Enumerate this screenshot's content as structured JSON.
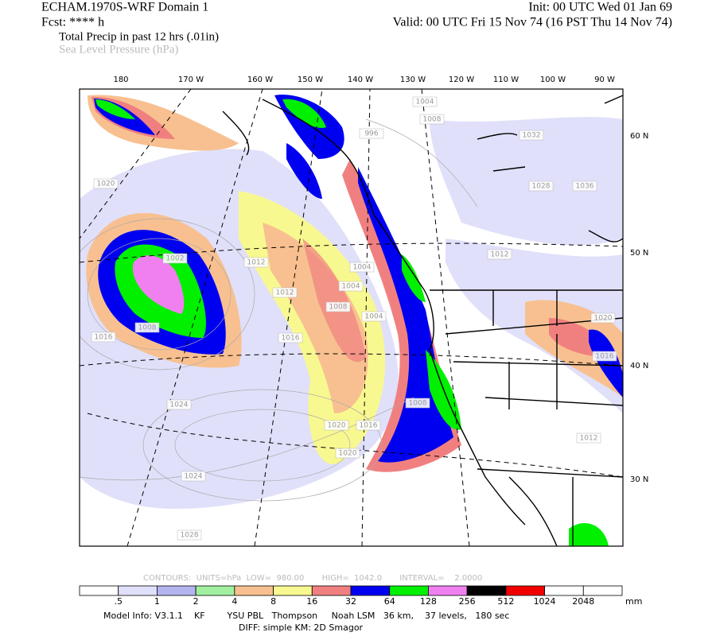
{
  "header": {
    "model": "ECHAM.1970S-WRF Domain 1",
    "init": "Init: 00 UTC Wed 01 Jan 69",
    "fcst": "Fcst: **** h",
    "valid": "Valid: 00 UTC Fri 15 Nov 74 (16 PST Thu 14 Nov 74)",
    "field1": "Total Precip in past 12 hrs (.01in)",
    "field2": "Sea Level Pressure (hPa)"
  },
  "map": {
    "longitude_labels": [
      "180",
      "170 W",
      "160 W",
      "150 W",
      "140 W",
      "130 W",
      "120 W",
      "110 W",
      "100 W",
      "90 W"
    ],
    "latitude_labels": [
      "60 N",
      "50 N",
      "40 N",
      "30 N"
    ],
    "isobar_labels": [
      "1004",
      "1008",
      "996",
      "1032",
      "1020",
      "1028",
      "1036",
      "1012",
      "1012",
      "1002",
      "1004",
      "1004",
      "1012",
      "1008",
      "1004",
      "1016",
      "1008",
      "1016",
      "1020",
      "1016",
      "1008",
      "1024",
      "1020",
      "1016",
      "1020",
      "1012",
      "1024",
      "1028"
    ]
  },
  "contour_info": "CONTOURS:  UNITS=hPa  LOW=  980.00       HIGH=  1042.0       INTERVAL=    2.0000",
  "colorbar": {
    "colors": [
      "#ffffff",
      "#e0e0fa",
      "#b4b4f0",
      "#a0f0a0",
      "#f8c090",
      "#f8f890",
      "#f08080",
      "#0000f0",
      "#00f000",
      "#f080f0",
      "#000000",
      "#f00000",
      "#ffffff",
      "#ffffff"
    ],
    "labels": [
      ".5",
      "1",
      "2",
      "4",
      "8",
      "16",
      "32",
      "64",
      "128",
      "256",
      "512",
      "1024",
      "2048"
    ],
    "unit": "mm"
  },
  "footer": {
    "model_info": "Model Info: V3.1.1    KF        YSU PBL   Thompson     Noah LSM   36 km,    37 levels,   180 sec",
    "diff": "DIFF: simple KM: 2D Smagor"
  }
}
